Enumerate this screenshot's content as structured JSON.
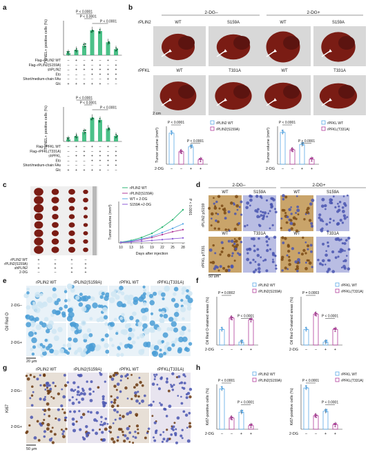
{
  "panels": {
    "a": {
      "letter": "a"
    },
    "b": {
      "letter": "b"
    },
    "c": {
      "letter": "c"
    },
    "d": {
      "letter": "d"
    },
    "e": {
      "letter": "e"
    },
    "f": {
      "letter": "f"
    },
    "g": {
      "letter": "g"
    },
    "h": {
      "letter": "h"
    }
  },
  "colors": {
    "green": "#2bb673",
    "blue": "#5aa9e6",
    "magenta": "#b03a9a",
    "purple": "#8e5bd6",
    "tumor": "#7a1c14",
    "stain_brown": "#b07a2e",
    "stain_blue": "#4a56b0",
    "oil_blue": "#4a9ed6",
    "oil_light": "#cfe6f3"
  },
  "panel_a": {
    "chart1": {
      "ylabel": "TUNEL+ positive cells (%)",
      "pvals": [
        "P < 0.0001",
        "P < 0.0001",
        "P < 0.0001"
      ],
      "rows": [
        {
          "label": "Flag–rPLIN2 WT",
          "signs": [
            "–",
            "+",
            "–",
            "+",
            "–",
            "+",
            "–"
          ]
        },
        {
          "label": "Flag–rPLIN2(S159A)",
          "signs": [
            "–",
            "–",
            "+",
            "–",
            "+",
            "–",
            "+"
          ]
        },
        {
          "label": "shPLIN2",
          "signs": [
            "–",
            "+",
            "+",
            "+",
            "+",
            "+",
            "+"
          ]
        },
        {
          "label": "Eto",
          "signs": [
            "–",
            "–",
            "–",
            "+",
            "+",
            "+",
            "+"
          ]
        },
        {
          "label": "Short/medium-chain FAs",
          "signs": [
            "–",
            "–",
            "–",
            "–",
            "–",
            "+",
            "+"
          ]
        },
        {
          "label": "Glc",
          "signs": [
            "+",
            "+",
            "+",
            "+",
            "+",
            "–",
            "–"
          ]
        }
      ]
    },
    "chart2": {
      "ylabel": "TUNEL+ positive cells (%)",
      "pvals": [
        "P < 0.0001",
        "P < 0.0001",
        "P < 0.0001"
      ],
      "rows": [
        {
          "label": "Flag–rPFKL WT",
          "signs": [
            "–",
            "+",
            "–",
            "+",
            "–",
            "+",
            "–"
          ]
        },
        {
          "label": "Flag–rPFKL(T331A)",
          "signs": [
            "–",
            "–",
            "+",
            "–",
            "+",
            "–",
            "+"
          ]
        },
        {
          "label": "shPFKL",
          "signs": [
            "–",
            "+",
            "+",
            "+",
            "+",
            "+",
            "+"
          ]
        },
        {
          "label": "Eto",
          "signs": [
            "–",
            "–",
            "–",
            "+",
            "+",
            "+",
            "+"
          ]
        },
        {
          "label": "Short/medium-chain FAs",
          "signs": [
            "–",
            "–",
            "–",
            "–",
            "–",
            "+",
            "+"
          ]
        },
        {
          "label": "Glc",
          "signs": [
            "+",
            "+",
            "+",
            "+",
            "+",
            "–",
            "–"
          ]
        }
      ]
    }
  },
  "panel_b": {
    "group_minus": "2-DG–",
    "group_plus": "2-DG+",
    "row1_label": "rPLIN2",
    "row2_label": "rPFKL",
    "row1_cols": [
      "WT",
      "S159A",
      "WT",
      "S159A"
    ],
    "row2_cols": [
      "WT",
      "T331A",
      "WT",
      "T331A"
    ],
    "scale": "2 cm"
  },
  "panel_c": {
    "row_labels": [
      "rPLIN2 WT",
      "rPLIN2(S159A)",
      "shPLIN2",
      "2-DG"
    ],
    "signs": [
      [
        "+",
        "–",
        "+",
        "–"
      ],
      [
        "–",
        "+",
        "–",
        "+"
      ],
      [
        "+",
        "+",
        "+",
        "+"
      ],
      [
        "–",
        "–",
        "+",
        "+"
      ]
    ]
  },
  "panel_d": {
    "group_minus": "2-DG–",
    "group_plus": "2-DG+",
    "row1_label": "rPLIN2 pS159",
    "row2_label": "rPFKL pT331",
    "row1_cols": [
      "WT",
      "S159A",
      "WT",
      "S159A"
    ],
    "row2_cols": [
      "WT",
      "T331A",
      "WT",
      "T331A"
    ],
    "scale": "50 μm"
  },
  "panel_e": {
    "side_label": "Oil Red O",
    "cols": [
      "rPLIN2 WT",
      "rPLIN2(S159A)",
      "rPFKL WT",
      "rPFKL(T331A)"
    ],
    "rows": [
      "2-DG–",
      "2-DG+"
    ],
    "scale": "20 μm"
  },
  "panel_g": {
    "side_label": "Ki67",
    "cols": [
      "rPLIN2 WT",
      "rPLIN2(S159A)",
      "rPFKL WT",
      "rPFKL(T331A)"
    ],
    "rows": [
      "2-DG–",
      "2-DG+"
    ],
    "scale": "50 μm"
  },
  "chart_data": [
    {
      "id": "a1",
      "type": "bar",
      "ylabel": "TUNEL+ positive cells (%)",
      "ylim": [
        0,
        80
      ],
      "values": [
        5,
        12,
        22,
        58,
        56,
        30,
        14
      ]
    },
    {
      "id": "a2",
      "type": "bar",
      "ylabel": "TUNEL+ positive cells (%)",
      "ylim": [
        0,
        80
      ],
      "values": [
        5,
        12,
        22,
        55,
        50,
        30,
        13
      ]
    },
    {
      "id": "b1",
      "type": "bar",
      "ylabel": "Tumor volume (mm³)",
      "ylim": [
        0,
        1000
      ],
      "legend": [
        "rPLIN2 WT",
        "rPLIN2(S159A)"
      ],
      "xsign_label": "2-DG",
      "xsigns": [
        "–",
        "–",
        "+",
        "+"
      ],
      "values": [
        820,
        330,
        460,
        120
      ],
      "pvals": [
        "P < 0.0001",
        "P < 0.0001"
      ]
    },
    {
      "id": "b2",
      "type": "bar",
      "ylabel": "Tumor volume (mm³)",
      "ylim": [
        0,
        1000
      ],
      "legend": [
        "rPFKL WT",
        "rPFKL(T331A)"
      ],
      "xsign_label": "2-DG",
      "xsigns": [
        "–",
        "–",
        "+",
        "+"
      ],
      "values": [
        840,
        380,
        520,
        130
      ],
      "pvals": [
        "P < 0.0001",
        "P < 0.0001"
      ]
    },
    {
      "id": "c",
      "type": "line",
      "ylabel": "Tumor volume (mm³)",
      "xlabel": "Days after injection",
      "x": [
        10,
        13,
        16,
        19,
        22,
        25,
        28
      ],
      "ylim": [
        0,
        1000
      ],
      "series": [
        {
          "name": "rPLIN2 WT",
          "values": [
            20,
            60,
            130,
            230,
            380,
            560,
            800
          ]
        },
        {
          "name": "rPLIN2(S159A)",
          "values": [
            15,
            40,
            80,
            130,
            200,
            270,
            320
          ]
        },
        {
          "name": "WT + 2-DG",
          "values": [
            15,
            45,
            95,
            160,
            250,
            350,
            460
          ]
        },
        {
          "name": "S159A +2-DG",
          "values": [
            10,
            25,
            40,
            60,
            80,
            100,
            120
          ]
        }
      ],
      "pvals": [
        "P < 0.0001",
        "P < 0.0001"
      ]
    },
    {
      "id": "f1",
      "type": "bar",
      "ylabel": "Oil Red O-stained areas (%)",
      "ylim": [
        0,
        25
      ],
      "legend": [
        "rPLIN2 WT",
        "rPLIN2(S159A)"
      ],
      "xsign_label": "2-DG",
      "xsigns": [
        "–",
        "–",
        "+",
        "+"
      ],
      "values": [
        8,
        14,
        1.5,
        13
      ],
      "pvals": [
        "P = 0.0002",
        "P < 0.0001"
      ]
    },
    {
      "id": "f2",
      "type": "bar",
      "ylabel": "Oil Red O-stained areas (%)",
      "ylim": [
        0,
        25
      ],
      "legend": [
        "rPFKL WT",
        "rPFKL(T331A)"
      ],
      "xsign_label": "2-DG",
      "xsigns": [
        "–",
        "–",
        "+",
        "+"
      ],
      "values": [
        8,
        16,
        1.5,
        8
      ],
      "pvals": [
        "P = 0.0003",
        "P < 0.0001"
      ]
    },
    {
      "id": "h1",
      "type": "bar",
      "ylabel": "Ki67-positive cells (%)",
      "ylim": [
        0,
        100
      ],
      "legend": [
        "rPLIN2 WT",
        "rPLIN2(S159A)"
      ],
      "xsign_label": "2-DG",
      "xsigns": [
        "–",
        "–",
        "+",
        "+"
      ],
      "values": [
        90,
        25,
        38,
        8
      ],
      "pvals": [
        "P < 0.0001",
        "P < 0.0001"
      ]
    },
    {
      "id": "h2",
      "type": "bar",
      "ylabel": "Ki67-positive cells (%)",
      "ylim": [
        0,
        100
      ],
      "legend": [
        "rPFKL WT",
        "rPFKL(T331A)"
      ],
      "xsign_label": "2-DG",
      "xsigns": [
        "–",
        "–",
        "+",
        "+"
      ],
      "values": [
        92,
        30,
        40,
        10
      ],
      "pvals": [
        "P < 0.0001",
        "P < 0.0001"
      ]
    }
  ]
}
